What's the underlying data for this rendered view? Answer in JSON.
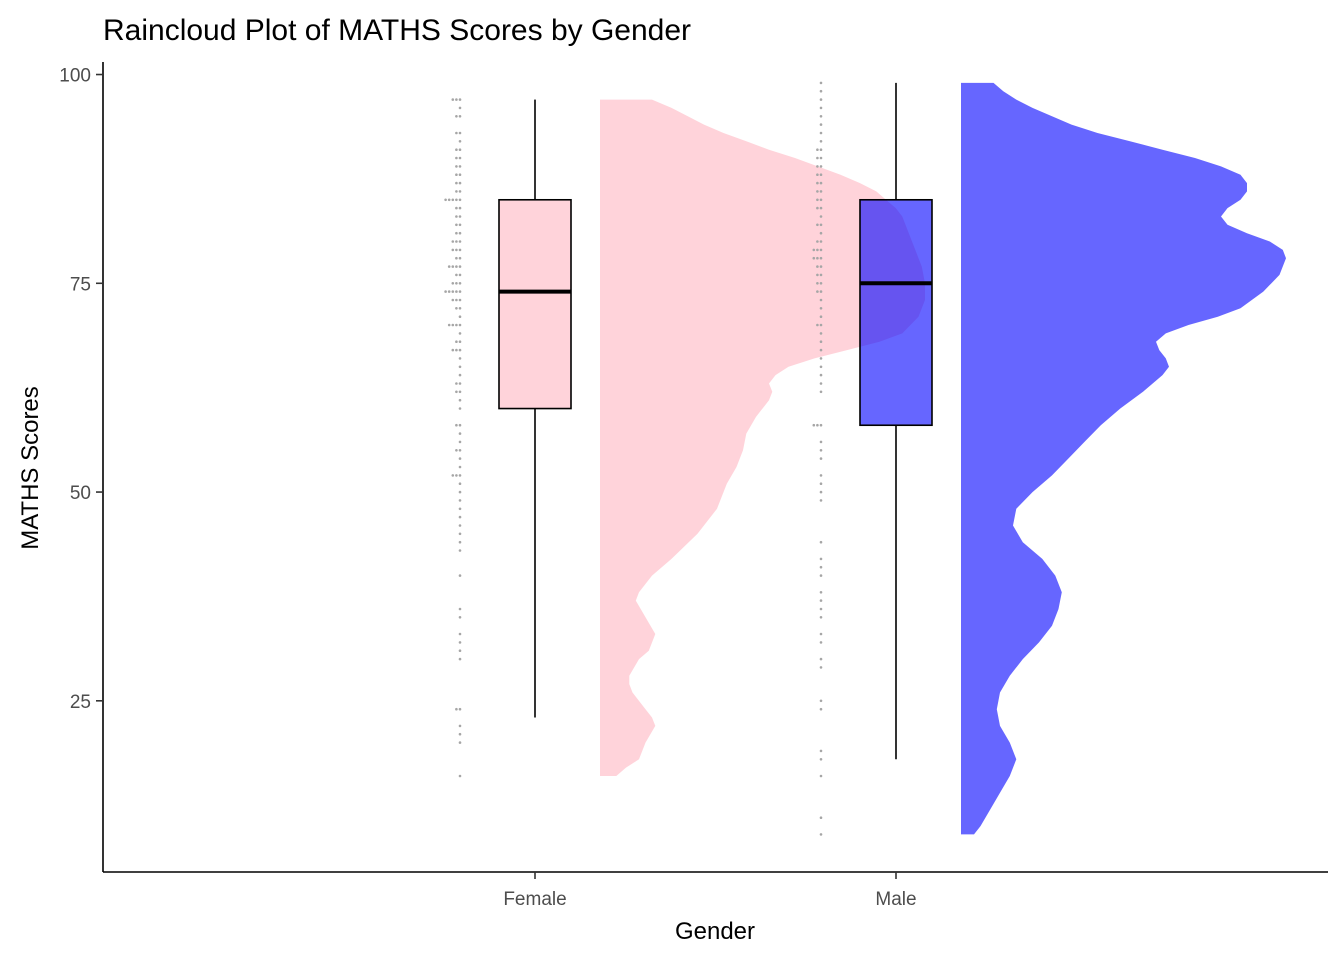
{
  "chart_data": {
    "type": "raincloud",
    "title": "Raincloud Plot of MATHS Scores by Gender",
    "xlabel": "Gender",
    "ylabel": "MATHS Scores",
    "categories": [
      "Female",
      "Male"
    ],
    "ylim": [
      4.5,
      101.5
    ],
    "y_ticks": [
      25,
      50,
      75,
      100
    ],
    "grid": false,
    "legend": "none",
    "series": [
      {
        "name": "Female",
        "fill_color": "#FFC0CB",
        "fill_opacity": 0.7,
        "box": {
          "min": 23,
          "q1": 60,
          "median": 74,
          "q3": 85,
          "max": 97
        },
        "density_range": [
          16,
          97
        ],
        "density": [
          [
            16,
            0.05
          ],
          [
            17,
            0.08
          ],
          [
            18,
            0.12
          ],
          [
            20,
            0.14
          ],
          [
            22,
            0.17
          ],
          [
            23,
            0.16
          ],
          [
            24,
            0.14
          ],
          [
            26,
            0.1
          ],
          [
            27,
            0.09
          ],
          [
            28,
            0.09
          ],
          [
            30,
            0.12
          ],
          [
            31,
            0.15
          ],
          [
            33,
            0.17
          ],
          [
            35,
            0.14
          ],
          [
            37,
            0.11
          ],
          [
            38,
            0.12
          ],
          [
            40,
            0.16
          ],
          [
            42,
            0.22
          ],
          [
            45,
            0.3
          ],
          [
            48,
            0.36
          ],
          [
            51,
            0.39
          ],
          [
            53,
            0.42
          ],
          [
            55,
            0.44
          ],
          [
            57,
            0.45
          ],
          [
            59,
            0.48
          ],
          [
            61,
            0.52
          ],
          [
            62,
            0.53
          ],
          [
            63,
            0.52
          ],
          [
            64,
            0.54
          ],
          [
            65,
            0.58
          ],
          [
            66,
            0.66
          ],
          [
            67,
            0.76
          ],
          [
            68,
            0.86
          ],
          [
            69,
            0.93
          ],
          [
            71,
            0.98
          ],
          [
            73,
            1.0
          ],
          [
            75,
            1.0
          ],
          [
            77,
            0.99
          ],
          [
            79,
            0.97
          ],
          [
            81,
            0.95
          ],
          [
            83,
            0.93
          ],
          [
            84,
            0.91
          ],
          [
            85,
            0.88
          ],
          [
            86,
            0.85
          ],
          [
            87,
            0.8
          ],
          [
            88,
            0.74
          ],
          [
            89,
            0.67
          ],
          [
            90,
            0.6
          ],
          [
            91,
            0.52
          ],
          [
            92,
            0.45
          ],
          [
            93,
            0.38
          ],
          [
            94,
            0.32
          ],
          [
            95,
            0.27
          ],
          [
            96,
            0.22
          ],
          [
            97,
            0.16
          ]
        ],
        "points": [
          16,
          20,
          21,
          22,
          24,
          24,
          30,
          31,
          32,
          33,
          35,
          36,
          40,
          43,
          44,
          45,
          46,
          47,
          48,
          49,
          50,
          51,
          52,
          52,
          52,
          53,
          54,
          55,
          55,
          56,
          57,
          58,
          58,
          60,
          61,
          62,
          62,
          63,
          63,
          64,
          65,
          66,
          67,
          67,
          67,
          68,
          68,
          69,
          70,
          70,
          70,
          70,
          71,
          72,
          72,
          73,
          73,
          73,
          74,
          74,
          74,
          74,
          74,
          75,
          75,
          75,
          76,
          76,
          77,
          77,
          77,
          77,
          78,
          78,
          79,
          79,
          79,
          80,
          80,
          80,
          81,
          81,
          82,
          82,
          83,
          83,
          84,
          84,
          85,
          85,
          85,
          85,
          85,
          86,
          86,
          87,
          87,
          88,
          88,
          89,
          89,
          90,
          90,
          91,
          91,
          92,
          93,
          93,
          95,
          95,
          96,
          97,
          97,
          97
        ]
      },
      {
        "name": "Male",
        "fill_color": "#0000FF",
        "fill_opacity": 0.6,
        "box": {
          "min": 18,
          "q1": 58,
          "median": 75,
          "q3": 85,
          "max": 99
        },
        "density_range": [
          9,
          99
        ],
        "density": [
          [
            9,
            0.04
          ],
          [
            10,
            0.06
          ],
          [
            12,
            0.09
          ],
          [
            14,
            0.12
          ],
          [
            16,
            0.15
          ],
          [
            18,
            0.17
          ],
          [
            20,
            0.15
          ],
          [
            22,
            0.12
          ],
          [
            24,
            0.11
          ],
          [
            26,
            0.12
          ],
          [
            28,
            0.15
          ],
          [
            30,
            0.19
          ],
          [
            32,
            0.24
          ],
          [
            34,
            0.28
          ],
          [
            36,
            0.3
          ],
          [
            38,
            0.31
          ],
          [
            40,
            0.29
          ],
          [
            42,
            0.25
          ],
          [
            44,
            0.19
          ],
          [
            46,
            0.16
          ],
          [
            48,
            0.17
          ],
          [
            50,
            0.22
          ],
          [
            52,
            0.28
          ],
          [
            54,
            0.33
          ],
          [
            56,
            0.38
          ],
          [
            58,
            0.43
          ],
          [
            60,
            0.49
          ],
          [
            62,
            0.56
          ],
          [
            64,
            0.62
          ],
          [
            65,
            0.64
          ],
          [
            66,
            0.63
          ],
          [
            67,
            0.61
          ],
          [
            68,
            0.6
          ],
          [
            69,
            0.63
          ],
          [
            70,
            0.7
          ],
          [
            71,
            0.79
          ],
          [
            72,
            0.86
          ],
          [
            74,
            0.93
          ],
          [
            76,
            0.98
          ],
          [
            78,
            1.0
          ],
          [
            79,
            0.99
          ],
          [
            80,
            0.95
          ],
          [
            81,
            0.88
          ],
          [
            82,
            0.82
          ],
          [
            83,
            0.8
          ],
          [
            84,
            0.82
          ],
          [
            85,
            0.86
          ],
          [
            86,
            0.88
          ],
          [
            87,
            0.88
          ],
          [
            88,
            0.86
          ],
          [
            89,
            0.8
          ],
          [
            90,
            0.72
          ],
          [
            91,
            0.62
          ],
          [
            92,
            0.52
          ],
          [
            93,
            0.42
          ],
          [
            94,
            0.34
          ],
          [
            95,
            0.28
          ],
          [
            96,
            0.22
          ],
          [
            97,
            0.17
          ],
          [
            98,
            0.13
          ],
          [
            99,
            0.1
          ]
        ],
        "points": [
          9,
          11,
          16,
          18,
          19,
          24,
          25,
          29,
          30,
          32,
          33,
          35,
          36,
          37,
          38,
          40,
          41,
          42,
          44,
          49,
          50,
          51,
          52,
          54,
          55,
          56,
          58,
          58,
          58,
          62,
          63,
          64,
          65,
          66,
          67,
          68,
          69,
          70,
          70,
          71,
          72,
          73,
          74,
          74,
          75,
          75,
          76,
          76,
          77,
          77,
          78,
          78,
          78,
          79,
          79,
          79,
          80,
          80,
          81,
          82,
          82,
          83,
          84,
          84,
          85,
          85,
          86,
          86,
          87,
          87,
          88,
          88,
          89,
          89,
          90,
          90,
          91,
          91,
          92,
          93,
          94,
          95,
          96,
          97,
          98,
          99
        ]
      }
    ]
  }
}
